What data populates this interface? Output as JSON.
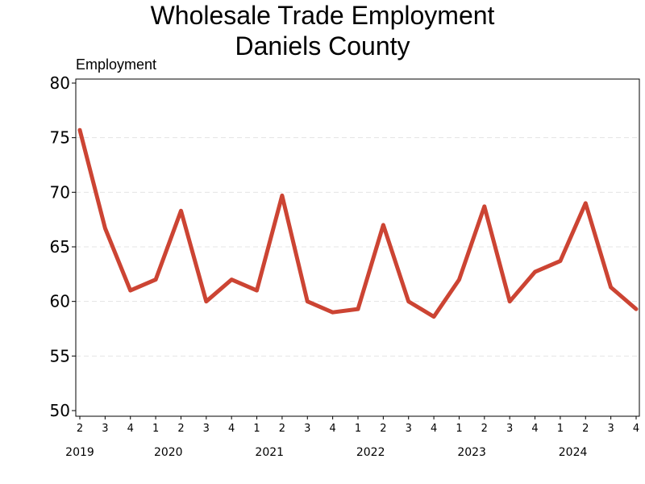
{
  "chart_data": {
    "type": "line",
    "title": "Wholesale Trade Employment",
    "subtitle": "Daniels County",
    "ylabel": "Employment",
    "xlabel": "",
    "ylim": [
      50,
      80
    ],
    "yticks": [
      50,
      55,
      60,
      65,
      70,
      75,
      80
    ],
    "grid": "horizontal dashed",
    "x_quarters": [
      "2",
      "3",
      "4",
      "1",
      "2",
      "3",
      "4",
      "1",
      "2",
      "3",
      "4",
      "1",
      "2",
      "3",
      "4",
      "1",
      "2",
      "3",
      "4",
      "1",
      "2",
      "3",
      "4"
    ],
    "x_years": [
      {
        "label": "2019",
        "index": 0
      },
      {
        "label": "2020",
        "index": 3
      },
      {
        "label": "2021",
        "index": 7
      },
      {
        "label": "2022",
        "index": 11
      },
      {
        "label": "2023",
        "index": 15
      },
      {
        "label": "2024",
        "index": 19
      }
    ],
    "series": [
      {
        "color": "#cc4433",
        "values": [
          75.7,
          66.7,
          61.0,
          62.0,
          68.3,
          60.0,
          62.0,
          61.0,
          69.7,
          60.0,
          59.0,
          59.3,
          67.0,
          60.0,
          58.6,
          62.0,
          68.7,
          60.0,
          62.7,
          63.7,
          69.0,
          61.3,
          59.3
        ]
      }
    ]
  }
}
